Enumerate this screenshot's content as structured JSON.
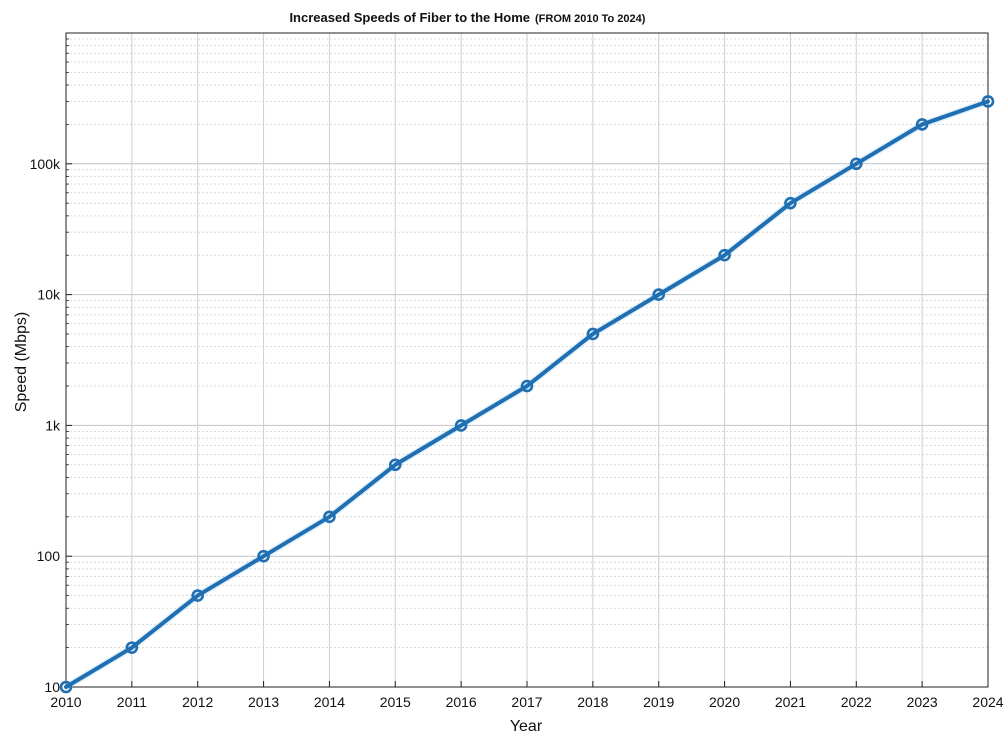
{
  "chart_data": {
    "type": "line",
    "title": "Increased Speeds of Fiber to the Home",
    "subtitle": "(FROM 2010 To 2024)",
    "xlabel": "Year",
    "ylabel": "Speed (Mbps)",
    "y_scale": "log",
    "xlim": [
      2010,
      2024
    ],
    "ylim": [
      10,
      1000000
    ],
    "grid": true,
    "x_ticks": [
      "2010",
      "2011",
      "2012",
      "2013",
      "2014",
      "2015",
      "2016",
      "2017",
      "2018",
      "2019",
      "2020",
      "2021",
      "2022",
      "2023",
      "2024"
    ],
    "y_ticks": [
      {
        "value": 10,
        "label": "10"
      },
      {
        "value": 100,
        "label": "100"
      },
      {
        "value": 1000,
        "label": "1k"
      },
      {
        "value": 10000,
        "label": "10k"
      },
      {
        "value": 100000,
        "label": "100k"
      }
    ],
    "series": [
      {
        "color": "#1f6fb2",
        "marker": "circle",
        "x": [
          2010,
          2011,
          2012,
          2013,
          2014,
          2015,
          2016,
          2017,
          2018,
          2019,
          2020,
          2021,
          2022,
          2023,
          2024
        ],
        "y": [
          10,
          20,
          50,
          100,
          200,
          500,
          1000,
          2000,
          5000,
          10000,
          20000,
          50000,
          100000,
          200000,
          300000
        ]
      }
    ]
  }
}
